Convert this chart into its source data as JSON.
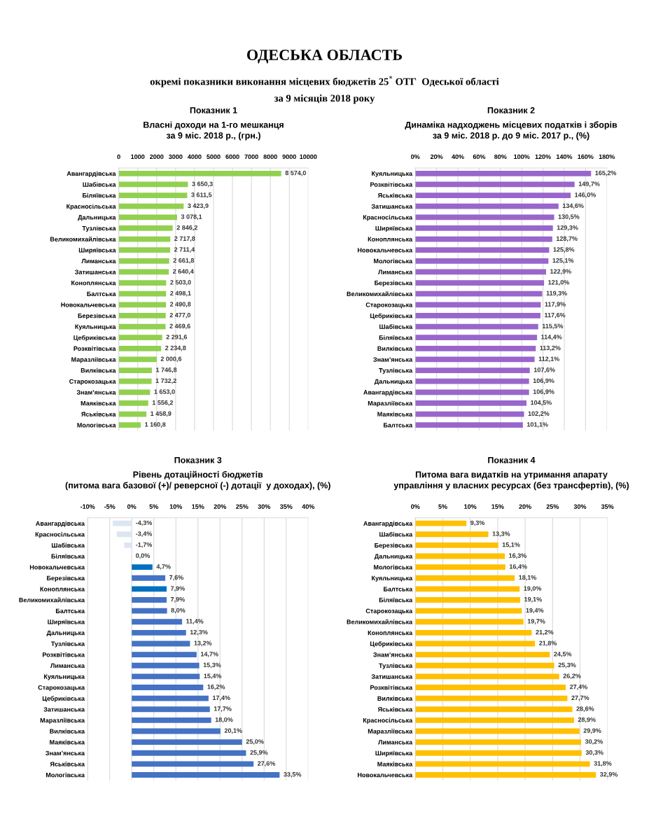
{
  "chart_data": [
    {
      "type": "bar",
      "orientation": "horizontal",
      "title": "Показник 1",
      "subtitle": "Власні доходи на 1-го мешканця\nза 9 міс. 2018 р., (грн.)",
      "annotations": [
        "ОДЕСЬКА ОБЛАСТЬ",
        "окремі показники виконання місцевих бюджетів 25$^{*}$ ОТГ  Одеської області",
        "за 9 місяців 2018 року"
      ],
      "categories": [
        "Авангардівська",
        "Шабівська",
        "Біляївська",
        "Красносільська",
        "Дальницька",
        "Тузлівська",
        "Великомихайлівська",
        "Ширяївська",
        "Лиманська",
        "Затишанська",
        "Коноплянська",
        "Балтська",
        "Новокальчевська",
        "Березівська",
        "Куяльницька",
        "Цебриківська",
        "Розквітівська",
        "Маразліївська",
        "Вилківська",
        "Старокозацька",
        "Знам’янська",
        "Маяківська",
        "Яськівська",
        "Мологівська"
      ],
      "values": [
        8574.0,
        3650.3,
        3611.5,
        3423.9,
        3078.1,
        2846.2,
        2717.8,
        2711.4,
        2661.8,
        2640.4,
        2503.0,
        2498.1,
        2490.8,
        2477.0,
        2469.6,
        2291.6,
        2234.8,
        2000.6,
        1746.8,
        1732.2,
        1653.0,
        1556.2,
        1458.9,
        1160.8
      ],
      "value_labels": [
        "8 574,0",
        "3 650,3",
        "3 611,5",
        "3 423,9",
        "3 078,1",
        "2 846,2",
        "2 717,8",
        "2 711,4",
        "2 661,8",
        "2 640,4",
        "2 503,0",
        "2 498,1",
        "2 490,8",
        "2 477,0",
        "2 469,6",
        "2 291,6",
        "2 234,8",
        "2 000,6",
        "1 746,8",
        "1 732,2",
        "1 653,0",
        "1 556,2",
        "1 458,9",
        "1 160,8"
      ],
      "color": "#92d050",
      "xlim": [
        0,
        10000
      ],
      "xticks": [
        0,
        1000,
        2000,
        3000,
        4000,
        5000,
        6000,
        7000,
        8000,
        9000,
        10000
      ],
      "grid": "x"
    },
    {
      "type": "bar",
      "orientation": "horizontal",
      "title": "Показник 2",
      "subtitle": "Динаміка надходжень місцевих податків і зборів\nза 9 міс. 2018 р. до 9 міс. 2017 р., (%)",
      "categories": [
        "Куяльницька",
        "Розквітівська",
        "Яськівська",
        "Затишанська",
        "Красносільська",
        "Ширяївська",
        "Коноплянська",
        "Новокальчевська",
        "Мологівська",
        "Лиманська",
        "Березівська",
        "Великомихайлівська",
        "Старокозацька",
        "Цебриківська",
        "Шабівська",
        "Біляївська",
        "Вилківська",
        "Знам’янська",
        "Тузлівська",
        "Дальницька",
        "Авангардівська",
        "Маразліївська",
        "Маяківська",
        "Балтська"
      ],
      "values": [
        165.2,
        149.7,
        146.0,
        134.6,
        130.5,
        129.3,
        128.7,
        125.8,
        125.1,
        122.9,
        121.0,
        119.3,
        117.9,
        117.6,
        115.5,
        114.4,
        113.2,
        112.1,
        107.6,
        106.9,
        106.9,
        104.5,
        102.2,
        101.1
      ],
      "value_labels": [
        "165,2%",
        "149,7%",
        "146,0%",
        "134,6%",
        "130,5%",
        "129,3%",
        "128,7%",
        "125,8%",
        "125,1%",
        "122,9%",
        "121,0%",
        "119,3%",
        "117,9%",
        "117,6%",
        "115,5%",
        "114,4%",
        "113,2%",
        "112,1%",
        "107,6%",
        "106,9%",
        "106,9%",
        "104,5%",
        "102,2%",
        "101,1%"
      ],
      "color": "#9966cc",
      "xlim": [
        0,
        180
      ],
      "xticks": [
        {
          "value": 0,
          "label": "0%"
        },
        {
          "value": 20,
          "label": "20%"
        },
        {
          "value": 40,
          "label": "40%"
        },
        {
          "value": 60,
          "label": "60%"
        },
        {
          "value": 80,
          "label": "80%"
        },
        {
          "value": 100,
          "label": "100%"
        },
        {
          "value": 120,
          "label": "120%"
        },
        {
          "value": 140,
          "label": "140%"
        },
        {
          "value": 160,
          "label": "160%"
        },
        {
          "value": 180,
          "label": "180%"
        }
      ],
      "grid": "x"
    },
    {
      "type": "bar",
      "orientation": "horizontal",
      "title": "Показник 3",
      "subtitle": "Рівень дотаційності бюджетів\n(питома вага базової (+)/ реверсної (-) дотації  у доходах), (%)",
      "categories": [
        "Авангардівська",
        "Красносільська",
        "Шабівська",
        "Біляївська",
        "Новокальчевська",
        "Березівська",
        "Коноплянська",
        "Великомихайлівська",
        "Балтська",
        "Ширяївська",
        "Дальницька",
        "Тузлівська",
        "Розквітівська",
        "Лиманська",
        "Куяльницька",
        "Старокозацька",
        "Цебриківська",
        "Затишанська",
        "Маразліївська",
        "Вилківська",
        "Маяківська",
        "Знам’янська",
        "Яськівська",
        "Мологівська"
      ],
      "values": [
        -4.3,
        -3.4,
        -1.7,
        0.0,
        4.7,
        7.6,
        7.9,
        7.9,
        8.0,
        11.4,
        12.3,
        13.2,
        14.7,
        15.3,
        15.4,
        16.2,
        17.4,
        17.7,
        18.0,
        20.1,
        25.0,
        25.9,
        27.6,
        33.5
      ],
      "value_labels": [
        "-4,3%",
        "-3,4%",
        "-1,7%",
        "0,0%",
        "4,7%",
        "7,6%",
        "7,9%",
        "7,9%",
        "8,0%",
        "11,4%",
        "12,3%",
        "13,2%",
        "14,7%",
        "15,3%",
        "15,4%",
        "16,2%",
        "17,4%",
        "17,7%",
        "18,0%",
        "20,1%",
        "25,0%",
        "25,9%",
        "27,6%",
        "33,5%"
      ],
      "colors": [
        "#dce6f2",
        "#dce6f2",
        "#dce6f2",
        "#dce6f2",
        "#0070c0",
        "#4472c4",
        "#0070c0",
        "#4472c4",
        "#4472c4",
        "#4472c4",
        "#4472c4",
        "#4472c4",
        "#4472c4",
        "#4472c4",
        "#4472c4",
        "#4472c4",
        "#4472c4",
        "#4472c4",
        "#4472c4",
        "#4472c4",
        "#4472c4",
        "#4472c4",
        "#4472c4",
        "#4472c4"
      ],
      "xlim": [
        -10,
        40
      ],
      "xticks": [
        {
          "value": -10,
          "label": "-10%"
        },
        {
          "value": -5,
          "label": "-5%"
        },
        {
          "value": 0,
          "label": "0%"
        },
        {
          "value": 5,
          "label": "5%"
        },
        {
          "value": 10,
          "label": "10%"
        },
        {
          "value": 15,
          "label": "15%"
        },
        {
          "value": 20,
          "label": "20%"
        },
        {
          "value": 25,
          "label": "25%"
        },
        {
          "value": 30,
          "label": "30%"
        },
        {
          "value": 35,
          "label": "35%"
        },
        {
          "value": 40,
          "label": "40%"
        }
      ],
      "grid": "x"
    },
    {
      "type": "bar",
      "orientation": "horizontal",
      "title": "Показник 4",
      "subtitle": "Питома вага видатків на утримання апарату\nуправління у власних ресурсах (без трансфертів), (%)",
      "categories": [
        "Авангардівська",
        "Шабівська",
        "Березівська",
        "Дальницька",
        "Мологівська",
        "Куяльницька",
        "Балтська",
        "Біляївська",
        "Старокозацька",
        "Великомихайлівська",
        "Коноплянська",
        "Цебриківська",
        "Знам’янська",
        "Тузлівська",
        "Затишанська",
        "Розквітівська",
        "Вилківська",
        "Яськівська",
        "Красносільська",
        "Маразліївська",
        "Лиманська",
        "Ширяївська",
        "Маяківська",
        "Новокальчевська"
      ],
      "values": [
        9.3,
        13.3,
        15.1,
        16.3,
        16.4,
        18.1,
        19.0,
        19.1,
        19.4,
        19.7,
        21.2,
        21.8,
        24.5,
        25.3,
        26.2,
        27.4,
        27.7,
        28.6,
        28.9,
        29.9,
        30.2,
        30.3,
        31.8,
        32.9
      ],
      "value_labels": [
        "9,3%",
        "13,3%",
        "15,1%",
        "16,3%",
        "16,4%",
        "18,1%",
        "19,0%",
        "19,1%",
        "19,4%",
        "19,7%",
        "21,2%",
        "21,8%",
        "24,5%",
        "25,3%",
        "26,2%",
        "27,4%",
        "27,7%",
        "28,6%",
        "28,9%",
        "29,9%",
        "30,2%",
        "30,3%",
        "31,8%",
        "32,9%"
      ],
      "color": "#ffc000",
      "xlim": [
        0,
        35
      ],
      "xticks": [
        {
          "value": 0,
          "label": "0%"
        },
        {
          "value": 5,
          "label": "5%"
        },
        {
          "value": 10,
          "label": "10%"
        },
        {
          "value": 15,
          "label": "15%"
        },
        {
          "value": 20,
          "label": "20%"
        },
        {
          "value": 25,
          "label": "25%"
        },
        {
          "value": 30,
          "label": "30%"
        },
        {
          "value": 35,
          "label": "35%"
        }
      ],
      "grid": "x"
    }
  ]
}
